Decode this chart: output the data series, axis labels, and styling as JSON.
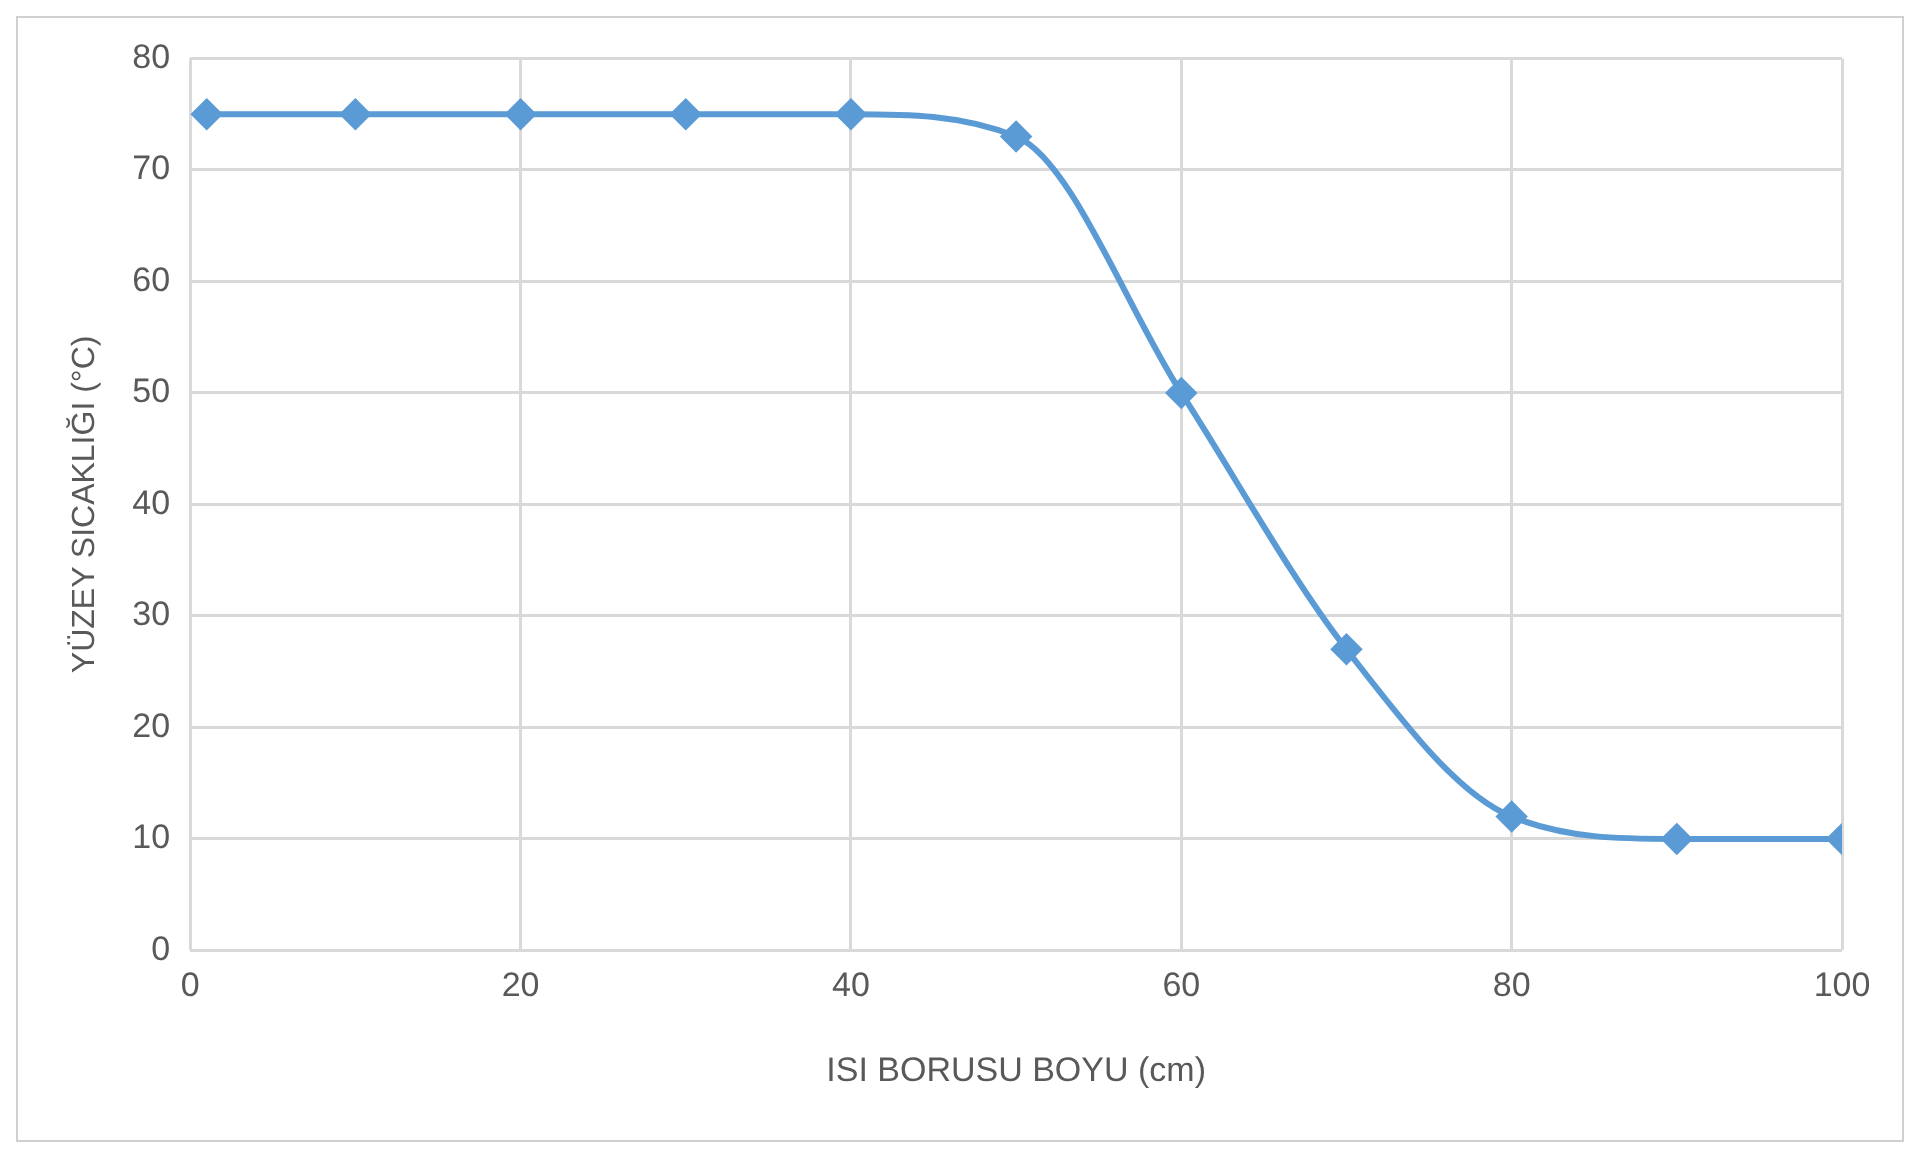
{
  "chart_data": {
    "type": "line",
    "xlabel": "ISI BORUSU BOYU (cm)",
    "ylabel": "YÜZEY SICAKLIĞI (°C)",
    "x": [
      1,
      10,
      20,
      30,
      40,
      50,
      60,
      70,
      80,
      90,
      100
    ],
    "series": [
      {
        "color": "#5b9bd5",
        "values": [
          75,
          75,
          75,
          75,
          75,
          73,
          50,
          27,
          12,
          10,
          10
        ]
      }
    ],
    "xlim": [
      0,
      100
    ],
    "xticks": [
      0,
      20,
      40,
      60,
      80,
      100
    ],
    "ylim": [
      0,
      80
    ],
    "yticks": [
      0,
      10,
      20,
      30,
      40,
      50,
      60,
      70,
      80
    ],
    "grid": true,
    "legend": false,
    "marker": "diamond",
    "line_style": "solid"
  }
}
